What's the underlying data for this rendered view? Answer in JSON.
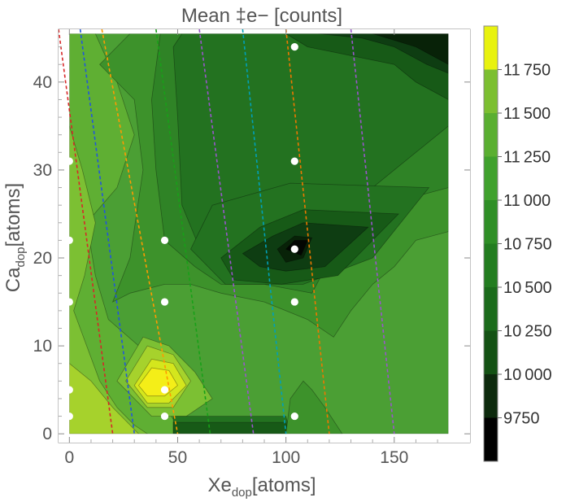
{
  "chart_data": {
    "type": "contour",
    "title": "Mean ‡e− [counts]",
    "xlabel": {
      "main": "Xe",
      "sub": "dop",
      "unit": "[atoms]"
    },
    "ylabel": {
      "main": "Ca",
      "sub": "dop",
      "unit": "[atoms]"
    },
    "xlim": [
      -5,
      185
    ],
    "ylim": [
      -1,
      46
    ],
    "x_ticks": [
      0,
      50,
      100,
      150
    ],
    "y_ticks": [
      0,
      10,
      20,
      30,
      40
    ],
    "colorbar": {
      "levels": [
        9500,
        9750,
        10000,
        10250,
        10500,
        10750,
        11000,
        11250,
        11500,
        11750,
        12000
      ],
      "labels": [
        "9750",
        "10 000",
        "10 250",
        "10 500",
        "10 750",
        "11 000",
        "11 250",
        "11 500",
        "11 750"
      ],
      "label_values": [
        9750,
        10000,
        10250,
        10500,
        10750,
        11000,
        11250,
        11500,
        11750
      ],
      "colors": [
        "#000000",
        "#0d2a0d",
        "#145214",
        "#1b6b1b",
        "#237d20",
        "#2f8f26",
        "#40a12d",
        "#5aaf31",
        "#7cbf31",
        "#a8d629",
        "#e8f20f",
        "#fff22b"
      ]
    },
    "sample_points": [
      {
        "x": 0,
        "y": 2
      },
      {
        "x": 0,
        "y": 5
      },
      {
        "x": 0,
        "y": 15
      },
      {
        "x": 0,
        "y": 22
      },
      {
        "x": 0,
        "y": 31
      },
      {
        "x": 44,
        "y": 2
      },
      {
        "x": 44,
        "y": 5
      },
      {
        "x": 44,
        "y": 15
      },
      {
        "x": 44,
        "y": 22
      },
      {
        "x": 104,
        "y": 2
      },
      {
        "x": 104,
        "y": 15
      },
      {
        "x": 104,
        "y": 21
      },
      {
        "x": 104,
        "y": 31
      },
      {
        "x": 104,
        "y": 44
      }
    ],
    "guide_lines": [
      {
        "color": "#d62728",
        "x_at_top": -5,
        "x_at_bottom": 20
      },
      {
        "color": "#2255dd",
        "x_at_top": 5,
        "x_at_bottom": 30
      },
      {
        "color": "#ff9900",
        "x_at_top": 15,
        "x_at_bottom": 50
      },
      {
        "color": "#18a018",
        "x_at_top": 40,
        "x_at_bottom": 65
      },
      {
        "color": "#9955cc",
        "x_at_top": 60,
        "x_at_bottom": 85
      },
      {
        "color": "#00a0b8",
        "x_at_top": 80,
        "x_at_bottom": 100
      },
      {
        "color": "#ee7700",
        "x_at_top": 100,
        "x_at_bottom": 120
      },
      {
        "color": "#9955cc",
        "x_at_top": 130,
        "x_at_bottom": 150
      }
    ],
    "region_levels": [
      {
        "level": 2,
        "fill": "#4b9f34",
        "pts": [
          [
            0,
            45.5
          ],
          [
            175,
            45.5
          ],
          [
            175,
            0
          ],
          [
            0,
            0
          ]
        ]
      },
      {
        "level": 3,
        "fill": "#5faf33",
        "pts": [
          [
            0,
            45.5
          ],
          [
            12,
            45.5
          ],
          [
            22,
            40
          ],
          [
            30,
            34
          ],
          [
            22,
            28
          ],
          [
            8,
            24
          ],
          [
            12,
            18
          ],
          [
            18,
            13
          ],
          [
            32,
            10
          ],
          [
            40,
            6
          ],
          [
            44,
            3
          ],
          [
            50,
            1
          ],
          [
            56,
            0
          ],
          [
            0,
            0
          ]
        ]
      },
      {
        "level": 4,
        "fill": "#7cc033",
        "pts": [
          [
            0,
            35
          ],
          [
            6,
            30
          ],
          [
            12,
            24
          ],
          [
            7,
            18
          ],
          [
            2,
            14
          ],
          [
            8,
            10
          ],
          [
            14,
            6
          ],
          [
            22,
            3
          ],
          [
            30,
            1
          ],
          [
            36,
            0
          ],
          [
            0,
            0
          ]
        ]
      },
      {
        "level": 5,
        "fill": "#a6d22c",
        "pts": [
          [
            0,
            8
          ],
          [
            10,
            6
          ],
          [
            20,
            3
          ],
          [
            28,
            1
          ],
          [
            32,
            0
          ],
          [
            0,
            0
          ]
        ]
      },
      {
        "level": 4,
        "fill": "#7cc033",
        "pts": [
          [
            22,
            6
          ],
          [
            34,
            11
          ],
          [
            46,
            10
          ],
          [
            58,
            7
          ],
          [
            66,
            4
          ],
          [
            54,
            2
          ],
          [
            38,
            2
          ]
        ]
      },
      {
        "level": 5,
        "fill": "#a6d22c",
        "pts": [
          [
            26,
            6
          ],
          [
            36,
            10
          ],
          [
            48,
            9
          ],
          [
            56,
            6
          ],
          [
            48,
            3
          ],
          [
            36,
            3
          ]
        ]
      },
      {
        "level": 6,
        "fill": "#d4e61d",
        "pts": [
          [
            30,
            5.5
          ],
          [
            38,
            8.5
          ],
          [
            48,
            8
          ],
          [
            54,
            5.5
          ],
          [
            46,
            3.5
          ],
          [
            36,
            3.5
          ]
        ]
      },
      {
        "level": 7,
        "fill": "#f4ee18",
        "pts": [
          [
            32,
            5.5
          ],
          [
            38,
            7.5
          ],
          [
            46,
            7.2
          ],
          [
            50,
            5.5
          ],
          [
            44,
            4.3
          ],
          [
            36,
            4.3
          ]
        ]
      },
      {
        "level": 1,
        "fill": "#3d922b",
        "pts": [
          [
            14,
            42
          ],
          [
            28,
            45.5
          ],
          [
            175,
            45.5
          ],
          [
            175,
            23
          ],
          [
            160,
            22
          ],
          [
            150,
            19
          ],
          [
            140,
            17
          ],
          [
            130,
            14
          ],
          [
            122,
            11
          ],
          [
            110,
            13
          ],
          [
            90,
            15
          ],
          [
            70,
            16
          ],
          [
            56,
            17
          ],
          [
            44,
            17
          ],
          [
            28,
            16
          ],
          [
            20,
            15
          ],
          [
            28,
            20
          ],
          [
            34,
            30
          ],
          [
            30,
            38
          ]
        ]
      },
      {
        "level": 0,
        "fill": "#2f8326",
        "pts": [
          [
            38,
            38
          ],
          [
            42,
            45.5
          ],
          [
            175,
            45.5
          ],
          [
            175,
            28
          ],
          [
            160,
            27
          ],
          [
            140,
            25
          ],
          [
            125,
            22
          ],
          [
            112,
            16
          ],
          [
            90,
            17
          ],
          [
            70,
            17
          ],
          [
            58,
            19
          ],
          [
            44,
            22
          ],
          [
            40,
            30
          ]
        ]
      },
      {
        "level": -1,
        "fill": "#237220",
        "pts": [
          [
            48,
            44
          ],
          [
            52,
            45.5
          ],
          [
            175,
            45.5
          ],
          [
            175,
            35
          ],
          [
            160,
            32
          ],
          [
            150,
            30
          ],
          [
            140,
            28
          ],
          [
            120,
            24
          ],
          [
            110,
            19
          ],
          [
            100,
            18
          ],
          [
            80,
            18
          ],
          [
            62,
            20
          ],
          [
            52,
            26
          ],
          [
            50,
            36
          ]
        ]
      },
      {
        "level": -1,
        "fill": "#237220",
        "pts": [
          [
            56,
            21
          ],
          [
            66,
            26
          ],
          [
            102,
            28.5
          ],
          [
            166,
            28
          ],
          [
            140,
            20
          ],
          [
            108,
            17
          ],
          [
            72,
            17
          ]
        ]
      },
      {
        "level": -2,
        "fill": "#175a17",
        "pts": [
          [
            70,
            20
          ],
          [
            88,
            23.5
          ],
          [
            108,
            25.5
          ],
          [
            152,
            25
          ],
          [
            124,
            18
          ],
          [
            98,
            17
          ],
          [
            76,
            17.5
          ]
        ]
      },
      {
        "level": -3,
        "fill": "#0e3d12",
        "pts": [
          [
            80,
            20.5
          ],
          [
            94,
            22.5
          ],
          [
            108,
            24
          ],
          [
            138,
            23.5
          ],
          [
            118,
            19
          ],
          [
            100,
            18.5
          ],
          [
            88,
            19
          ]
        ]
      },
      {
        "level": -4,
        "fill": "#082208",
        "pts": [
          [
            96,
            21
          ],
          [
            104,
            22.5
          ],
          [
            112,
            22.3
          ],
          [
            108,
            20
          ],
          [
            100,
            19.5
          ]
        ]
      },
      {
        "level": -5,
        "fill": "#020602",
        "pts": [
          [
            100,
            21
          ],
          [
            104,
            22
          ],
          [
            110,
            22
          ],
          [
            107,
            20.3
          ]
        ]
      },
      {
        "level": -2,
        "fill": "#175a17",
        "pts": [
          [
            100,
            45.5
          ],
          [
            175,
            45.5
          ],
          [
            175,
            38
          ],
          [
            160,
            40
          ],
          [
            150,
            42
          ],
          [
            130,
            43
          ],
          [
            110,
            44
          ]
        ]
      },
      {
        "level": -3,
        "fill": "#0e3d12",
        "pts": [
          [
            115,
            45.5
          ],
          [
            175,
            45.5
          ],
          [
            175,
            41
          ],
          [
            165,
            42
          ],
          [
            150,
            44
          ],
          [
            135,
            45
          ]
        ]
      },
      {
        "level": -4,
        "fill": "#082208",
        "pts": [
          [
            140,
            45.5
          ],
          [
            175,
            45.5
          ],
          [
            175,
            42
          ],
          [
            160,
            44
          ]
        ]
      },
      {
        "level": -1,
        "fill": "#237220",
        "pts": [
          [
            48,
            0
          ],
          [
            48,
            2
          ],
          [
            72,
            2
          ],
          [
            100,
            2
          ],
          [
            102,
            0
          ]
        ]
      },
      {
        "level": -2,
        "fill": "#175a17",
        "pts": [
          [
            48,
            0
          ],
          [
            48,
            1.3
          ],
          [
            100,
            1.3
          ],
          [
            101,
            0
          ]
        ]
      },
      {
        "level": 1,
        "fill": "#3d922b",
        "pts": [
          [
            100,
            0
          ],
          [
            102,
            4
          ],
          [
            108,
            6
          ],
          [
            112,
            5
          ],
          [
            118,
            3
          ],
          [
            126,
            0
          ]
        ]
      }
    ]
  }
}
